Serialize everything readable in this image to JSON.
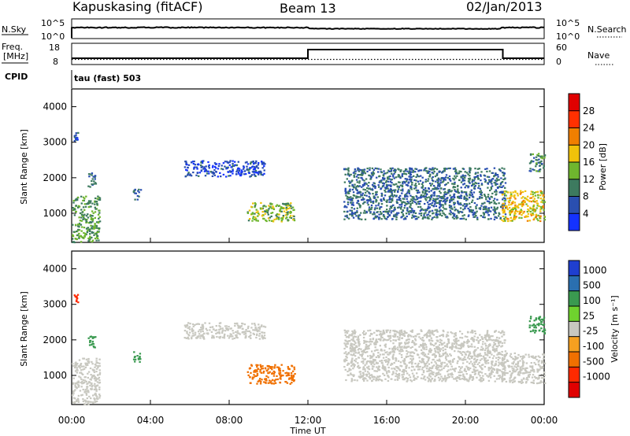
{
  "header": {
    "title": "Kapuskasing (fitACF)",
    "beam": "Beam 13",
    "date": "02/Jan/2013"
  },
  "strip_nsky": {
    "left_label": "N.Sky",
    "left_ticks": [
      "10^5",
      "10^0"
    ],
    "right_label": "N.Search",
    "right_ticks": [
      "10^5",
      "10^0"
    ]
  },
  "strip_freq": {
    "left_label_1": "Freq.",
    "left_label_2": "[MHz]",
    "left_ticks": [
      "18",
      "8"
    ],
    "right_label": "Nave",
    "right_ticks": [
      "60",
      "0"
    ],
    "cpid_label": "CPID",
    "mode_label": "tau (fast) 503",
    "freq_step_hours": [
      12.0,
      21.9
    ]
  },
  "axes": {
    "ylabel": "Slant Range [km]",
    "xlabel": "Time UT",
    "yticks": [
      "1000",
      "2000",
      "3000",
      "4000"
    ],
    "xticks": [
      "00:00",
      "04:00",
      "08:00",
      "12:00",
      "16:00",
      "20:00",
      "00:00"
    ],
    "ylim": [
      180,
      4500
    ],
    "xlim_hours": [
      0,
      24
    ]
  },
  "power_colorbar": {
    "label": "Power [dB]",
    "ticks": [
      "4",
      "8",
      "12",
      "16",
      "20",
      "24",
      "28"
    ],
    "colors": [
      "#1432ff",
      "#2a4fb0",
      "#3d7a5f",
      "#6fb62e",
      "#f0c20a",
      "#f07f00",
      "#ff3000",
      "#e00000"
    ]
  },
  "velocity_colorbar": {
    "label": "Velocity [m s⁻¹]",
    "ticks": [
      "1000",
      "500",
      "100",
      "25",
      "-25",
      "-100",
      "-500",
      "-1000"
    ],
    "colors": [
      "#1f3fcf",
      "#2a6fb0",
      "#3a9a50",
      "#6fd22e",
      "#c8c8c0",
      "#f5a020",
      "#f07000",
      "#ff2a00",
      "#e00000"
    ]
  },
  "chart_data": {
    "type": "heatmap",
    "title": "Kapuskasing (fitACF)",
    "xlabel": "Time UT",
    "ylabel": "Slant Range [km]",
    "xlim_hours": [
      0,
      24
    ],
    "ylim_km": [
      180,
      4500
    ],
    "panels": [
      "Power [dB]",
      "Velocity [m s⁻¹]"
    ],
    "echo_regions": [
      {
        "t0": 0.0,
        "t1": 1.4,
        "r0": 200,
        "r1": 1500,
        "power": 12,
        "velocity": 0
      },
      {
        "t0": 0.8,
        "t1": 1.2,
        "r0": 1750,
        "r1": 2150,
        "power": 8,
        "velocity": 100
      },
      {
        "t0": 0.1,
        "t1": 0.3,
        "r0": 3050,
        "r1": 3300,
        "power": 6,
        "velocity": -500
      },
      {
        "t0": 3.1,
        "t1": 3.5,
        "r0": 1400,
        "r1": 1700,
        "power": 8,
        "velocity": 100
      },
      {
        "t0": 5.7,
        "t1": 9.8,
        "r0": 2050,
        "r1": 2500,
        "power": 5,
        "velocity": 0
      },
      {
        "t0": 8.9,
        "t1": 11.3,
        "r0": 780,
        "r1": 1320,
        "power": 14,
        "velocity": -100
      },
      {
        "t0": 13.8,
        "t1": 22.0,
        "r0": 850,
        "r1": 2300,
        "power": 8,
        "velocity": 0
      },
      {
        "t0": 21.8,
        "t1": 24.0,
        "r0": 800,
        "r1": 1650,
        "power": 18,
        "velocity": 0
      },
      {
        "t0": 23.2,
        "t1": 24.0,
        "r0": 2200,
        "r1": 2700,
        "power": 10,
        "velocity": 100
      }
    ]
  }
}
